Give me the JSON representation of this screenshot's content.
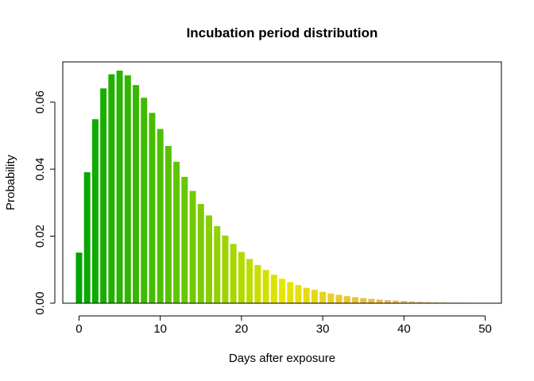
{
  "chart_data": {
    "type": "bar",
    "title": "Incubation period distribution",
    "xlabel": "Days after exposure",
    "ylabel": "Probability",
    "xlim": [
      -2.0,
      52.0
    ],
    "ylim": [
      0,
      0.072
    ],
    "xticks": [
      0,
      10,
      20,
      30,
      40,
      50
    ],
    "xtick_labels": [
      "0",
      "10",
      "20",
      "30",
      "40",
      "50"
    ],
    "yticks": [
      0.0,
      0.02,
      0.04,
      0.06
    ],
    "ytick_labels": [
      "0.00",
      "0.02",
      "0.04",
      "0.06"
    ],
    "grid": false,
    "legend": "none",
    "color_scale": [
      "#00a600",
      "#63c600",
      "#e6e600",
      "#eab64e",
      "#f2f2f2"
    ],
    "x": [
      0,
      1,
      2,
      3,
      4,
      5,
      6,
      7,
      8,
      9,
      10,
      11,
      12,
      13,
      14,
      15,
      16,
      17,
      18,
      19,
      20,
      21,
      22,
      23,
      24,
      25,
      26,
      27,
      28,
      29,
      30,
      31,
      32,
      33,
      34,
      35,
      36,
      37,
      38,
      39,
      40,
      41,
      42,
      43,
      44,
      45,
      46,
      47,
      48,
      49,
      50
    ],
    "values": [
      0.0151,
      0.0391,
      0.0549,
      0.0641,
      0.0683,
      0.0694,
      0.068,
      0.0651,
      0.0613,
      0.0568,
      0.052,
      0.0469,
      0.0422,
      0.0377,
      0.0335,
      0.0296,
      0.0262,
      0.023,
      0.0202,
      0.0177,
      0.0153,
      0.0132,
      0.0114,
      0.0099,
      0.0085,
      0.0073,
      0.0063,
      0.0054,
      0.0046,
      0.004,
      0.0034,
      0.0029,
      0.0025,
      0.0021,
      0.0018,
      0.0015,
      0.0013,
      0.0011,
      0.0009,
      0.0008,
      0.0007,
      0.0006,
      0.0005,
      0.0004,
      0.0003,
      0.0003,
      0.0002,
      0.0002,
      0.0002,
      0.0001,
      0.0001
    ]
  }
}
